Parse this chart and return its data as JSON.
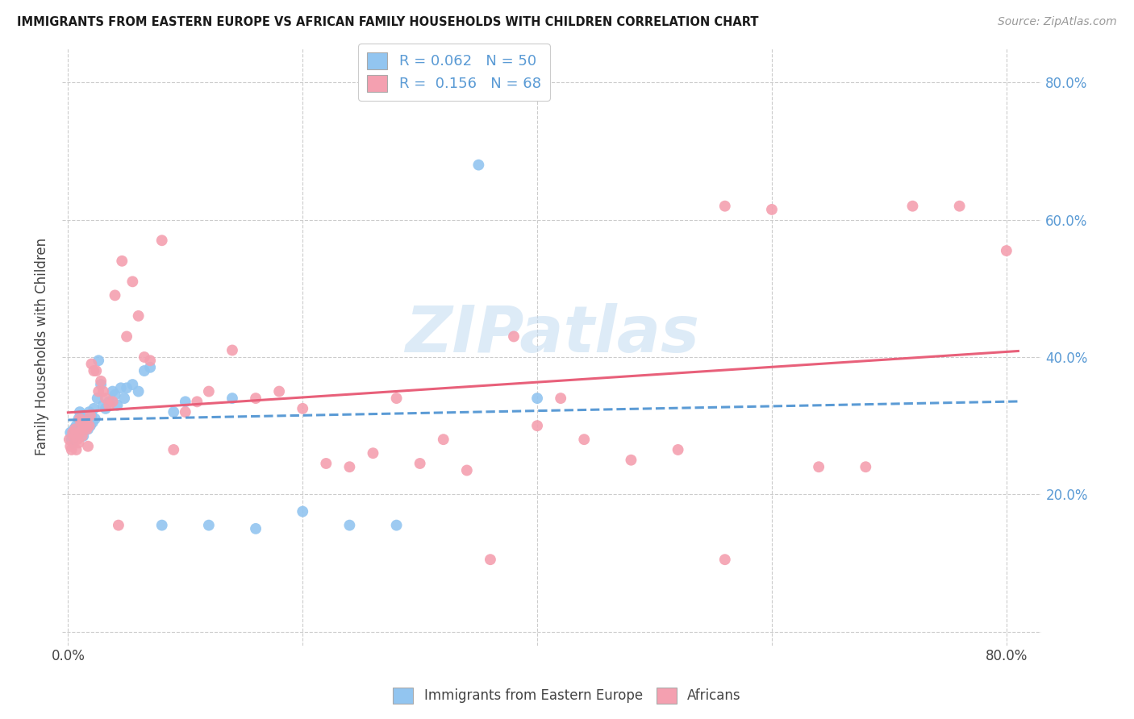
{
  "title": "IMMIGRANTS FROM EASTERN EUROPE VS AFRICAN FAMILY HOUSEHOLDS WITH CHILDREN CORRELATION CHART",
  "source": "Source: ZipAtlas.com",
  "ylabel": "Family Households with Children",
  "series1_name": "Immigrants from Eastern Europe",
  "series2_name": "Africans",
  "legend1_label": "R = 0.062   N = 50",
  "legend2_label": "R =  0.156   N = 68",
  "blue_color": "#92C5F0",
  "pink_color": "#F4A0B0",
  "blue_line_color": "#5B9BD5",
  "pink_line_color": "#E8607A",
  "watermark": "ZIPatlas",
  "xlim": [
    -0.005,
    0.83
  ],
  "ylim": [
    -0.02,
    0.85
  ],
  "blue_x": [
    0.002,
    0.003,
    0.004,
    0.005,
    0.006,
    0.007,
    0.008,
    0.009,
    0.01,
    0.01,
    0.011,
    0.012,
    0.013,
    0.014,
    0.015,
    0.016,
    0.017,
    0.018,
    0.019,
    0.02,
    0.021,
    0.022,
    0.023,
    0.025,
    0.026,
    0.028,
    0.03,
    0.032,
    0.035,
    0.038,
    0.04,
    0.042,
    0.045,
    0.048,
    0.05,
    0.055,
    0.06,
    0.065,
    0.07,
    0.08,
    0.09,
    0.1,
    0.12,
    0.14,
    0.16,
    0.2,
    0.24,
    0.28,
    0.35,
    0.4
  ],
  "blue_y": [
    0.29,
    0.28,
    0.275,
    0.295,
    0.285,
    0.3,
    0.295,
    0.31,
    0.3,
    0.32,
    0.295,
    0.315,
    0.285,
    0.305,
    0.3,
    0.31,
    0.295,
    0.32,
    0.3,
    0.315,
    0.305,
    0.325,
    0.31,
    0.34,
    0.395,
    0.36,
    0.33,
    0.325,
    0.335,
    0.35,
    0.345,
    0.33,
    0.355,
    0.34,
    0.355,
    0.36,
    0.35,
    0.38,
    0.385,
    0.155,
    0.32,
    0.335,
    0.155,
    0.34,
    0.15,
    0.175,
    0.155,
    0.155,
    0.68,
    0.34
  ],
  "pink_x": [
    0.001,
    0.002,
    0.003,
    0.004,
    0.005,
    0.006,
    0.007,
    0.008,
    0.009,
    0.01,
    0.01,
    0.011,
    0.012,
    0.013,
    0.014,
    0.015,
    0.016,
    0.017,
    0.018,
    0.019,
    0.02,
    0.022,
    0.024,
    0.026,
    0.028,
    0.03,
    0.032,
    0.035,
    0.038,
    0.04,
    0.043,
    0.046,
    0.05,
    0.055,
    0.06,
    0.065,
    0.07,
    0.08,
    0.09,
    0.1,
    0.11,
    0.12,
    0.14,
    0.16,
    0.18,
    0.2,
    0.22,
    0.24,
    0.26,
    0.28,
    0.3,
    0.32,
    0.34,
    0.36,
    0.38,
    0.4,
    0.42,
    0.44,
    0.48,
    0.52,
    0.56,
    0.6,
    0.64,
    0.68,
    0.72,
    0.76,
    0.8,
    0.56
  ],
  "pink_y": [
    0.28,
    0.27,
    0.265,
    0.29,
    0.285,
    0.295,
    0.265,
    0.28,
    0.275,
    0.29,
    0.31,
    0.305,
    0.285,
    0.295,
    0.305,
    0.3,
    0.295,
    0.27,
    0.3,
    0.315,
    0.39,
    0.38,
    0.38,
    0.35,
    0.365,
    0.35,
    0.34,
    0.33,
    0.335,
    0.49,
    0.155,
    0.54,
    0.43,
    0.51,
    0.46,
    0.4,
    0.395,
    0.57,
    0.265,
    0.32,
    0.335,
    0.35,
    0.41,
    0.34,
    0.35,
    0.325,
    0.245,
    0.24,
    0.26,
    0.34,
    0.245,
    0.28,
    0.235,
    0.105,
    0.43,
    0.3,
    0.34,
    0.28,
    0.25,
    0.265,
    0.62,
    0.615,
    0.24,
    0.24,
    0.62,
    0.62,
    0.555,
    0.105
  ]
}
